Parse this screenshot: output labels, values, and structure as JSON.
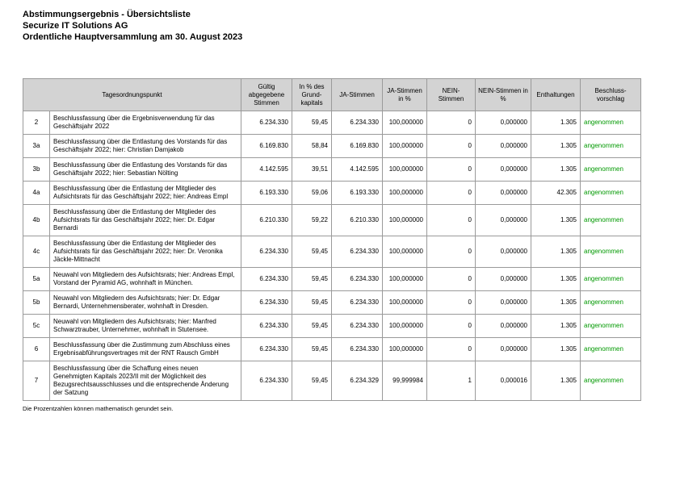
{
  "header": {
    "title": "Abstimmungsergebnis - Übersichtsliste",
    "company": "Securize IT Solutions AG",
    "meeting": "Ordentliche Hauptversammlung am 30. August 2023"
  },
  "table": {
    "columns": [
      "Tagesordnungspunkt",
      "Gültig abgegebene Stimmen",
      "In % des Grund-kapitals",
      "JA-Stimmen",
      "JA-Stimmen in %",
      "NEIN-Stimmen",
      "NEIN-Stimmen in %",
      "Enthaltungen",
      "Beschluss-vorschlag"
    ],
    "rows": [
      {
        "item": "2",
        "text": "Beschlussfassung über die Ergebnisverwendung für das Geschäftsjahr 2022",
        "valid": "6.234.330",
        "capital_pct": "59,45",
        "yes": "6.234.330",
        "yes_pct": "100,000000",
        "no": "0",
        "no_pct": "0,000000",
        "abstentions": "1.305",
        "decision": "angenommen"
      },
      {
        "item": "3a",
        "text": "Beschlussfassung über die Entlastung des Vorstands für das Geschäftsjahr 2022; hier: Christian Damjakob",
        "valid": "6.169.830",
        "capital_pct": "58,84",
        "yes": "6.169.830",
        "yes_pct": "100,000000",
        "no": "0",
        "no_pct": "0,000000",
        "abstentions": "1.305",
        "decision": "angenommen"
      },
      {
        "item": "3b",
        "text": "Beschlussfassung über die Entlastung des Vorstands für das Geschäftsjahr 2022; hier: Sebastian Nölting",
        "valid": "4.142.595",
        "capital_pct": "39,51",
        "yes": "4.142.595",
        "yes_pct": "100,000000",
        "no": "0",
        "no_pct": "0,000000",
        "abstentions": "1.305",
        "decision": "angenommen"
      },
      {
        "item": "4a",
        "text": "Beschlussfassung über die Entlastung der Mitglieder des Aufsichtsrats für das Geschäftsjahr 2022; hier: Andreas Empl",
        "valid": "6.193.330",
        "capital_pct": "59,06",
        "yes": "6.193.330",
        "yes_pct": "100,000000",
        "no": "0",
        "no_pct": "0,000000",
        "abstentions": "42.305",
        "decision": "angenommen"
      },
      {
        "item": "4b",
        "text": "Beschlussfassung über die Entlastung der Mitglieder des Aufsichtsrats für das Geschäftsjahr 2022; hier: Dr. Edgar Bernardi",
        "valid": "6.210.330",
        "capital_pct": "59,22",
        "yes": "6.210.330",
        "yes_pct": "100,000000",
        "no": "0",
        "no_pct": "0,000000",
        "abstentions": "1.305",
        "decision": "angenommen"
      },
      {
        "item": "4c",
        "text": "Beschlussfassung über die Entlastung der Mitglieder des Aufsichtsrats für das Geschäftsjahr 2022; hier: Dr. Veronika Jäckle-Mittnacht",
        "valid": "6.234.330",
        "capital_pct": "59,45",
        "yes": "6.234.330",
        "yes_pct": "100,000000",
        "no": "0",
        "no_pct": "0,000000",
        "abstentions": "1.305",
        "decision": "angenommen"
      },
      {
        "item": "5a",
        "text": "Neuwahl von Mitgliedern des Aufsichtsrats; hier: Andreas Empl, Vorstand der Pyramid AG, wohnhaft in München.",
        "valid": "6.234.330",
        "capital_pct": "59,45",
        "yes": "6.234.330",
        "yes_pct": "100,000000",
        "no": "0",
        "no_pct": "0,000000",
        "abstentions": "1.305",
        "decision": "angenommen"
      },
      {
        "item": "5b",
        "text": "Neuwahl von Mitgliedern des Aufsichtsrats; hier: Dr. Edgar Bernardi, Unternehmensberater, wohnhaft in Dresden.",
        "valid": "6.234.330",
        "capital_pct": "59,45",
        "yes": "6.234.330",
        "yes_pct": "100,000000",
        "no": "0",
        "no_pct": "0,000000",
        "abstentions": "1.305",
        "decision": "angenommen"
      },
      {
        "item": "5c",
        "text": "Neuwahl von Mitgliedern des Aufsichtsrats; hier: Manfred Schwarztrauber, Unternehmer, wohnhaft in Stutensee.",
        "valid": "6.234.330",
        "capital_pct": "59,45",
        "yes": "6.234.330",
        "yes_pct": "100,000000",
        "no": "0",
        "no_pct": "0,000000",
        "abstentions": "1.305",
        "decision": "angenommen"
      },
      {
        "item": "6",
        "text": "Beschlussfassung über die Zustimmung zum Abschluss eines Ergebnisabführungsvertrages mit der RNT Rausch GmbH",
        "valid": "6.234.330",
        "capital_pct": "59,45",
        "yes": "6.234.330",
        "yes_pct": "100,000000",
        "no": "0",
        "no_pct": "0,000000",
        "abstentions": "1.305",
        "decision": "angenommen"
      },
      {
        "item": "7",
        "text": "Beschlussfassung über die Schaffung eines neuen Genehmigten Kapitals 2023/II mit der Möglichkeit des Bezugsrechtsausschlusses und die entsprechende Änderung der Satzung",
        "valid": "6.234.330",
        "capital_pct": "59,45",
        "yes": "6.234.329",
        "yes_pct": "99,999984",
        "no": "1",
        "no_pct": "0,000016",
        "abstentions": "1.305",
        "decision": "angenommen"
      }
    ]
  },
  "footnote": "Die Prozentzahlen können mathematisch gerundet sein.",
  "colors": {
    "accepted_green": "#009900",
    "header_bg": "#d3d3d3",
    "border": "#9a9a9a"
  }
}
